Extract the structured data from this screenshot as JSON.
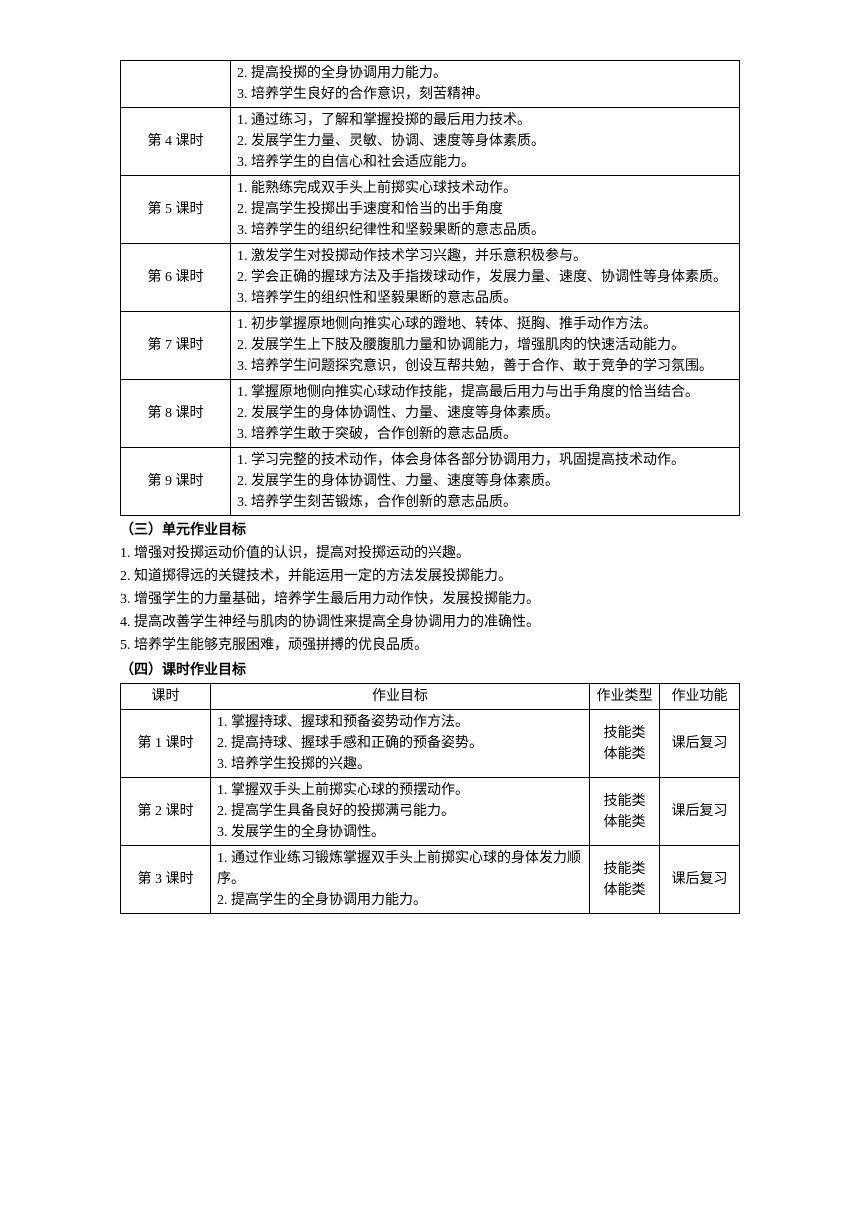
{
  "table1": {
    "rows": [
      {
        "period": "",
        "items": [
          "2. 提高投掷的全身协调用力能力。",
          "3. 培养学生良好的合作意识，刻苦精神。"
        ]
      },
      {
        "period": "第 4 课时",
        "items": [
          "1. 通过练习，了解和掌握投掷的最后用力技术。",
          "2. 发展学生力量、灵敏、协调、速度等身体素质。",
          "3. 培养学生的自信心和社会适应能力。"
        ]
      },
      {
        "period": "第 5 课时",
        "items": [
          "1. 能熟练完成双手头上前掷实心球技术动作。",
          "2. 提高学生投掷出手速度和恰当的出手角度",
          "3. 培养学生的组织纪律性和坚毅果断的意志品质。"
        ]
      },
      {
        "period": "第 6 课时",
        "items": [
          "1. 激发学生对投掷动作技术学习兴趣，并乐意积极参与。",
          "2. 学会正确的握球方法及手指拨球动作，发展力量、速度、协调性等身体素质。",
          "3. 培养学生的组织性和坚毅果断的意志品质。"
        ]
      },
      {
        "period": "第 7 课时",
        "items": [
          "1. 初步掌握原地侧向推实心球的蹬地、转体、挺胸、推手动作方法。",
          "2. 发展学生上下肢及腰腹肌力量和协调能力，增强肌肉的快速活动能力。",
          "3. 培养学生问题探究意识，创设互帮共勉，善于合作、敢于竞争的学习氛围。"
        ]
      },
      {
        "period": "第 8 课时",
        "items": [
          "1. 掌握原地侧向推实心球动作技能，提高最后用力与出手角度的恰当结合。",
          "2. 发展学生的身体协调性、力量、速度等身体素质。",
          "3. 培养学生敢于突破，合作创新的意志品质。"
        ]
      },
      {
        "period": "第 9 课时",
        "items": [
          "1. 学习完整的技术动作，体会身体各部分协调用力，巩固提高技术动作。",
          "2. 发展学生的身体协调性、力量、速度等身体素质。",
          "3. 培养学生刻苦锻炼，合作创新的意志品质。"
        ]
      }
    ]
  },
  "section3": {
    "heading": "（三）单元作业目标",
    "items": [
      "1. 增强对投掷运动价值的认识，提高对投掷运动的兴趣。",
      "2. 知道掷得远的关键技术，并能运用一定的方法发展投掷能力。",
      "3. 增强学生的力量基础，培养学生最后用力动作快，发展投掷能力。",
      "4. 提高改善学生神经与肌肉的协调性来提高全身协调用力的准确性。",
      "5. 培养学生能够克服困难，顽强拼搏的优良品质。"
    ]
  },
  "section4": {
    "heading": "（四）课时作业目标",
    "headers": {
      "period": "课时",
      "goal": "作业目标",
      "type": "作业类型",
      "func": "作业功能"
    },
    "rows": [
      {
        "period": "第 1 课时",
        "items": [
          "1. 掌握持球、握球和预备姿势动作方法。",
          "2. 提高持球、握球手感和正确的预备姿势。",
          "3. 培养学生投掷的兴趣。"
        ],
        "type": "技能类\n体能类",
        "func": "课后复习"
      },
      {
        "period": "第 2 课时",
        "items": [
          "1. 掌握双手头上前掷实心球的预摆动作。",
          "2. 提高学生具备良好的投掷满弓能力。",
          "3. 发展学生的全身协调性。"
        ],
        "type": "技能类\n体能类",
        "func": "课后复习"
      },
      {
        "period": "第 3 课时",
        "items": [
          "1. 通过作业练习锻炼掌握双手头上前掷实心球的身体发力顺序。",
          "2. 提高学生的全身协调用力能力。"
        ],
        "type": "技能类\n体能类",
        "func": "课后复习"
      }
    ]
  }
}
